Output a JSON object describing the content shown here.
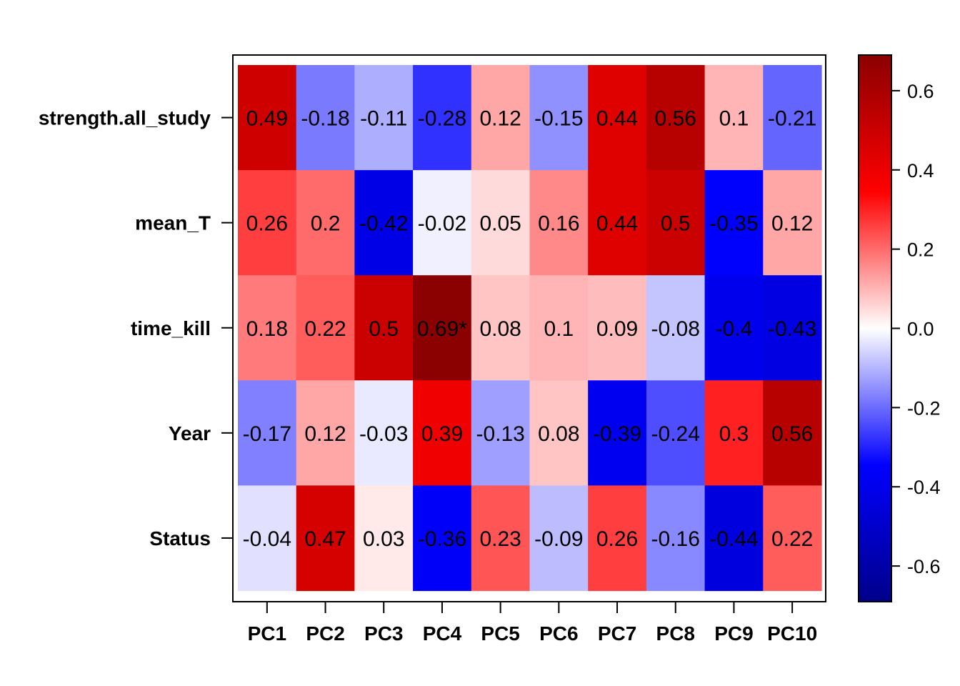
{
  "chart_data": {
    "type": "heatmap",
    "rows": [
      "strength.all_study",
      "mean_T",
      "time_kill",
      "Year",
      "Status"
    ],
    "columns": [
      "PC1",
      "PC2",
      "PC3",
      "PC4",
      "PC5",
      "PC6",
      "PC7",
      "PC8",
      "PC9",
      "PC10"
    ],
    "values": [
      [
        0.49,
        -0.18,
        -0.11,
        -0.28,
        0.12,
        -0.15,
        0.44,
        0.56,
        0.1,
        -0.21
      ],
      [
        0.26,
        0.2,
        -0.42,
        -0.02,
        0.05,
        0.16,
        0.44,
        0.5,
        -0.35,
        0.12
      ],
      [
        0.18,
        0.22,
        0.5,
        0.69,
        0.08,
        0.1,
        0.09,
        -0.08,
        -0.4,
        -0.43
      ],
      [
        -0.17,
        0.12,
        -0.03,
        0.39,
        -0.13,
        0.08,
        -0.39,
        -0.24,
        0.3,
        0.56
      ],
      [
        -0.04,
        0.47,
        0.03,
        -0.36,
        0.23,
        -0.09,
        0.26,
        -0.16,
        -0.44,
        0.22
      ]
    ],
    "cell_labels": [
      [
        "0.49",
        "-0.18",
        "-0.11",
        "-0.28",
        "0.12",
        "-0.15",
        "0.44",
        "0.56",
        "0.1",
        "-0.21"
      ],
      [
        "0.26",
        "0.2",
        "-0.42",
        "-0.02",
        "0.05",
        "0.16",
        "0.44",
        "0.5",
        "-0.35",
        "0.12"
      ],
      [
        "0.18",
        "0.22",
        "0.5",
        "0.69*",
        "0.08",
        "0.1",
        "0.09",
        "-0.08",
        "-0.4",
        "-0.43"
      ],
      [
        "-0.17",
        "0.12",
        "-0.03",
        "0.39",
        "-0.13",
        "0.08",
        "-0.39",
        "-0.24",
        "0.3",
        "0.56"
      ],
      [
        "-0.04",
        "0.47",
        "0.03",
        "-0.36",
        "0.23",
        "-0.09",
        "0.26",
        "-0.16",
        "-0.44",
        "0.22"
      ]
    ],
    "colorbar": {
      "range": [
        -0.69,
        0.69
      ],
      "ticks": [
        -0.6,
        -0.4,
        -0.2,
        0.0,
        0.2,
        0.4,
        0.6
      ],
      "tick_labels": [
        "-0.6",
        "-0.4",
        "-0.2",
        "0.0",
        "0.2",
        "0.4",
        "0.6"
      ],
      "colors": {
        "low": "#00008b",
        "mid_low": "#0000ff",
        "center": "#ffffff",
        "mid_high": "#ff0000",
        "high": "#8b0000"
      }
    },
    "title": "",
    "xlabel": "",
    "ylabel": ""
  }
}
